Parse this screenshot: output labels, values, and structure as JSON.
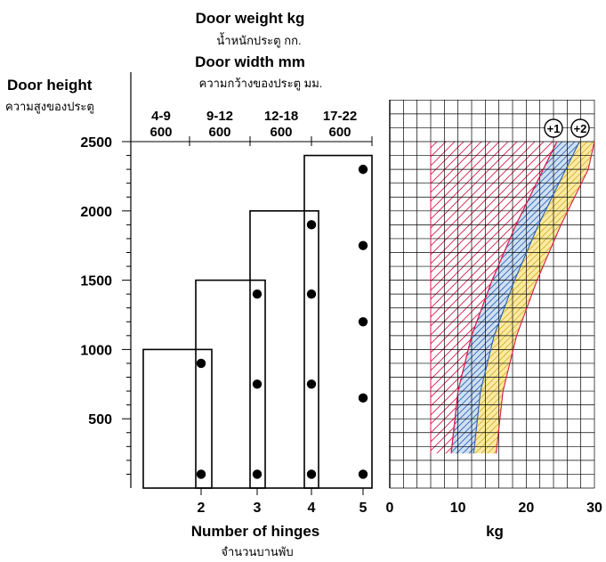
{
  "chart_data": [
    {
      "type": "scatter",
      "title": "Door weight kg",
      "title_thai": "น้ำหนักประตู กก.",
      "subtitle": "Door width mm",
      "subtitle_thai": "ความกว้างของประตู มม.",
      "ylabel": "Door height",
      "ylabel_thai": "ความสูงของประตู",
      "xlabel": "Number of hinges",
      "xlabel_thai": "จำนวนบานพับ",
      "ylim": [
        0,
        2500
      ],
      "yticks": [
        500,
        1000,
        1500,
        2000,
        2500
      ],
      "xlim": [
        1,
        5
      ],
      "xticks": [
        2,
        3,
        4,
        5
      ],
      "categories": [
        {
          "weight": "4-9",
          "width": "600"
        },
        {
          "weight": "9-12",
          "width": "600"
        },
        {
          "weight": "12-18",
          "width": "600"
        },
        {
          "weight": "17-22",
          "width": "600"
        }
      ],
      "boxes": [
        {
          "hinges": 2,
          "max_height": 1000,
          "hinge_positions": [
            100,
            900
          ]
        },
        {
          "hinges": 3,
          "max_height": 1500,
          "hinge_positions": [
            100,
            750,
            1400
          ]
        },
        {
          "hinges": 4,
          "max_height": 2000,
          "hinge_positions": [
            100,
            750,
            1400,
            1900
          ]
        },
        {
          "hinges": 5,
          "max_height": 2400,
          "hinge_positions": [
            100,
            650,
            1200,
            1750,
            2300
          ]
        }
      ],
      "grid": true
    },
    {
      "type": "area",
      "xlabel": "kg",
      "xlim": [
        0,
        30
      ],
      "xticks": [
        0,
        10,
        20,
        30
      ],
      "ylim": [
        0,
        2500
      ],
      "grid": true,
      "regions": [
        {
          "id": "base",
          "color": "#d81b4a",
          "hatch": "crosshatch",
          "left": [
            [
              6,
              250
            ],
            [
              6,
              2500
            ]
          ],
          "right": [
            [
              9,
              250
            ],
            [
              10,
              700
            ],
            [
              12,
              1100
            ],
            [
              15,
              1500
            ],
            [
              18.5,
              1900
            ],
            [
              22.5,
              2300
            ],
            [
              24.5,
              2500
            ]
          ]
        },
        {
          "id": "plus1",
          "label": "+1",
          "color": "#2a5fb0",
          "fill": "#cfe0f3",
          "left": [
            [
              9,
              250
            ],
            [
              10,
              700
            ],
            [
              12,
              1100
            ],
            [
              15,
              1500
            ],
            [
              18.5,
              1900
            ],
            [
              22.5,
              2300
            ],
            [
              24.5,
              2500
            ]
          ],
          "right": [
            [
              12.3,
              250
            ],
            [
              13.3,
              700
            ],
            [
              15.3,
              1100
            ],
            [
              18.3,
              1500
            ],
            [
              21.8,
              1900
            ],
            [
              25.8,
              2300
            ],
            [
              27.8,
              2500
            ]
          ]
        },
        {
          "id": "plus2",
          "label": "+2",
          "color": "#d81b4a",
          "fill": "#fbeaa0",
          "left": [
            [
              12.3,
              250
            ],
            [
              13.3,
              700
            ],
            [
              15.3,
              1100
            ],
            [
              18.3,
              1500
            ],
            [
              21.8,
              1900
            ],
            [
              25.8,
              2300
            ],
            [
              27.8,
              2500
            ]
          ],
          "right": [
            [
              15.6,
              250
            ],
            [
              16.6,
              700
            ],
            [
              18.6,
              1100
            ],
            [
              21.6,
              1500
            ],
            [
              25.1,
              1900
            ],
            [
              29.1,
              2300
            ],
            [
              31.1,
              2500
            ]
          ]
        }
      ]
    }
  ]
}
